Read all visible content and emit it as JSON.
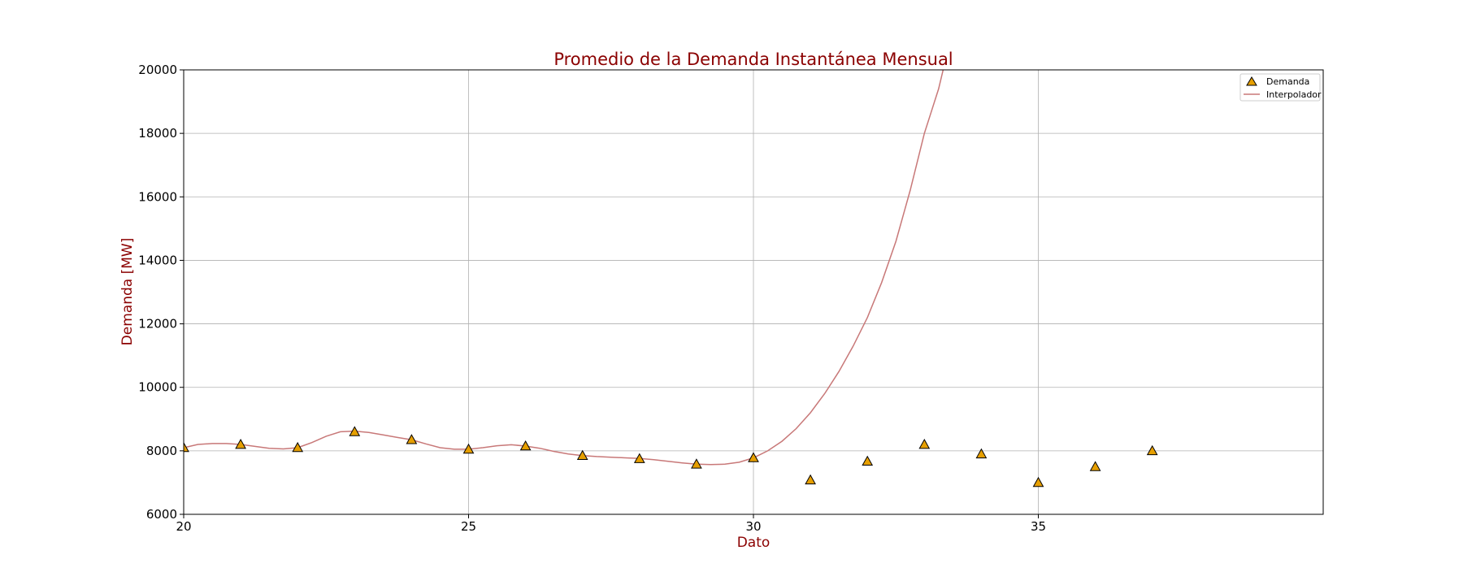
{
  "chart_data": {
    "type": "scatter",
    "title": "Promedio de la Demanda Instantánea Mensual",
    "xlabel": "Dato",
    "ylabel": "Demanda [MW]",
    "xlim": [
      20,
      40
    ],
    "ylim": [
      6000,
      20000
    ],
    "xticks": [
      20,
      25,
      30,
      35
    ],
    "yticks": [
      6000,
      8000,
      10000,
      12000,
      14000,
      16000,
      18000,
      20000
    ],
    "grid": true,
    "legend_position": "top-right",
    "series": [
      {
        "name": "Demanda",
        "kind": "scatter",
        "marker": "triangle",
        "color": "#e69f00",
        "edge_color": "#000000",
        "x": [
          20,
          21,
          22,
          23,
          24,
          25,
          26,
          27,
          28,
          29,
          30,
          31,
          32,
          33,
          34,
          35,
          36,
          37
        ],
        "y": [
          8100,
          8200,
          8100,
          8600,
          8350,
          8050,
          8150,
          7850,
          7750,
          7580,
          7780,
          7080,
          7670,
          8200,
          7900,
          7000,
          7500,
          8000
        ]
      },
      {
        "name": "Interpolador",
        "kind": "line",
        "color": "#c87878",
        "x": [
          20,
          20.25,
          20.5,
          20.75,
          21,
          21.25,
          21.5,
          21.75,
          22,
          22.25,
          22.5,
          22.75,
          23,
          23.25,
          23.5,
          23.75,
          24,
          24.25,
          24.5,
          24.75,
          25,
          25.25,
          25.5,
          25.75,
          26,
          26.25,
          26.5,
          26.75,
          27,
          27.25,
          27.5,
          27.75,
          28,
          28.25,
          28.5,
          28.75,
          29,
          29.25,
          29.5,
          29.75,
          30,
          30.25,
          30.5,
          30.75,
          31,
          31.25,
          31.5,
          31.75,
          32,
          32.25,
          32.5,
          32.75,
          33,
          33.25,
          33.33
        ],
        "y": [
          8100,
          8200,
          8230,
          8230,
          8200,
          8140,
          8080,
          8060,
          8100,
          8260,
          8460,
          8600,
          8620,
          8580,
          8500,
          8420,
          8350,
          8220,
          8100,
          8050,
          8050,
          8100,
          8160,
          8190,
          8150,
          8080,
          7980,
          7900,
          7850,
          7820,
          7800,
          7780,
          7760,
          7720,
          7670,
          7620,
          7580,
          7570,
          7580,
          7640,
          7780,
          8000,
          8300,
          8700,
          9200,
          9800,
          10500,
          11300,
          12200,
          13300,
          14600,
          16200,
          18000,
          19400,
          20000
        ]
      }
    ]
  }
}
